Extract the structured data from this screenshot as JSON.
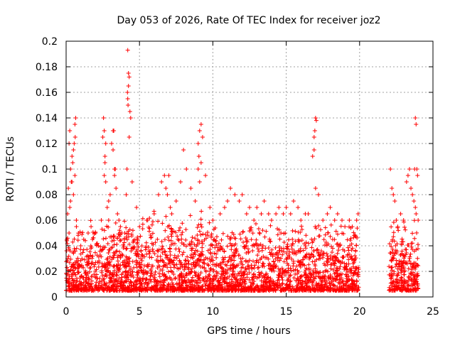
{
  "chart_data": {
    "type": "scatter",
    "title": "Day 053 of 2026, Rate Of TEC Index for receiver joz2",
    "xlabel": "GPS time / hours",
    "ylabel": "ROTI / TECUs",
    "xlim": [
      0,
      25
    ],
    "ylim": [
      0,
      0.2
    ],
    "xticks": [
      0,
      5,
      10,
      15,
      20,
      25
    ],
    "xtick_labels": [
      "0",
      "5",
      "10",
      "15",
      "20",
      "25"
    ],
    "yticks": [
      0,
      0.02,
      0.04,
      0.06,
      0.08,
      0.1,
      0.12,
      0.14,
      0.16,
      0.18,
      0.2
    ],
    "ytick_labels": [
      "0",
      "0.02",
      "0.04",
      "0.06",
      "0.08",
      "0.1",
      "0.12",
      "0.14",
      "0.16",
      "0.18",
      "0.2"
    ],
    "grid": true,
    "marker": "plus",
    "color": "#ff0000",
    "series": [
      {
        "x": [
          0.05,
          0.1,
          0.15,
          0.2,
          0.25,
          0.3,
          0.35,
          0.4,
          0.45,
          0.5,
          0.55,
          0.6,
          0.65,
          0.7,
          0.3,
          0.5,
          0.6,
          0.62,
          0.7,
          0.2,
          0.25,
          0.4,
          1.0,
          1.2,
          1.5,
          1.7,
          1.8,
          2.0,
          2.2,
          2.4,
          2.5,
          2.55,
          2.6,
          2.65,
          2.7,
          2.8,
          2.9,
          3.0,
          3.1,
          3.2,
          3.3,
          3.4,
          3.5,
          3.6,
          3.7,
          3.8,
          2.6,
          2.65,
          2.7,
          3.2,
          3.3,
          3.25,
          3.35,
          2.9,
          4.0,
          4.1,
          4.15,
          4.2,
          4.25,
          4.3,
          4.35,
          4.4,
          4.2,
          4.25,
          4.18,
          4.22,
          4.3,
          4.5,
          4.8,
          5.0,
          5.5,
          6.0,
          6.3,
          6.5,
          6.7,
          6.8,
          6.9,
          7.0,
          7.1,
          7.2,
          7.5,
          7.8,
          8.0,
          8.2,
          8.5,
          8.8,
          9.0,
          9.1,
          9.2,
          9.3,
          9.0,
          9.05,
          9.1,
          9.2,
          9.5,
          9.8,
          10.0,
          10.5,
          10.8,
          11.0,
          11.2,
          11.5,
          11.8,
          12.0,
          12.3,
          12.5,
          12.8,
          13.0,
          13.3,
          13.5,
          13.8,
          14.0,
          14.3,
          14.5,
          14.8,
          15.0,
          15.3,
          15.5,
          15.8,
          16.0,
          16.3,
          16.5,
          16.8,
          16.9,
          16.95,
          17.0,
          17.05,
          16.9,
          17.0,
          17.2,
          17.5,
          17.8,
          18.0,
          18.3,
          18.5,
          18.8,
          19.0,
          19.3,
          19.5,
          19.8,
          19.9,
          22.1,
          22.2,
          22.3,
          22.4,
          22.5,
          22.6,
          22.8,
          23.0,
          23.2,
          23.3,
          23.4,
          23.5,
          23.6,
          23.7,
          23.75,
          23.8,
          23.85,
          23.9,
          23.95,
          23.8,
          23.85
        ],
        "y": [
          0.045,
          0.065,
          0.085,
          0.12,
          0.13,
          0.1,
          0.09,
          0.11,
          0.105,
          0.115,
          0.12,
          0.135,
          0.14,
          0.06,
          0.075,
          0.08,
          0.095,
          0.125,
          0.055,
          0.05,
          0.07,
          0.09,
          0.04,
          0.045,
          0.05,
          0.055,
          0.045,
          0.05,
          0.04,
          0.06,
          0.125,
          0.14,
          0.13,
          0.105,
          0.09,
          0.07,
          0.06,
          0.08,
          0.12,
          0.13,
          0.1,
          0.085,
          0.065,
          0.06,
          0.055,
          0.05,
          0.095,
          0.11,
          0.12,
          0.115,
          0.095,
          0.13,
          0.1,
          0.075,
          0.05,
          0.08,
          0.1,
          0.155,
          0.165,
          0.172,
          0.145,
          0.14,
          0.193,
          0.175,
          0.16,
          0.15,
          0.125,
          0.09,
          0.07,
          0.055,
          0.06,
          0.065,
          0.08,
          0.09,
          0.095,
          0.085,
          0.08,
          0.095,
          0.07,
          0.065,
          0.075,
          0.09,
          0.115,
          0.1,
          0.085,
          0.075,
          0.12,
          0.13,
          0.135,
          0.125,
          0.1,
          0.11,
          0.09,
          0.105,
          0.095,
          0.07,
          0.06,
          0.065,
          0.07,
          0.075,
          0.085,
          0.08,
          0.075,
          0.08,
          0.065,
          0.07,
          0.06,
          0.07,
          0.065,
          0.075,
          0.065,
          0.06,
          0.065,
          0.07,
          0.065,
          0.07,
          0.065,
          0.075,
          0.07,
          0.06,
          0.065,
          0.065,
          0.11,
          0.125,
          0.13,
          0.14,
          0.138,
          0.115,
          0.085,
          0.08,
          0.06,
          0.065,
          0.07,
          0.06,
          0.065,
          0.06,
          0.055,
          0.06,
          0.055,
          0.06,
          0.065,
          0.1,
          0.085,
          0.08,
          0.075,
          0.06,
          0.055,
          0.065,
          0.06,
          0.09,
          0.095,
          0.1,
          0.085,
          0.08,
          0.075,
          0.1,
          0.14,
          0.135,
          0.1,
          0.095,
          0.07,
          0.065
        ]
      }
    ]
  }
}
